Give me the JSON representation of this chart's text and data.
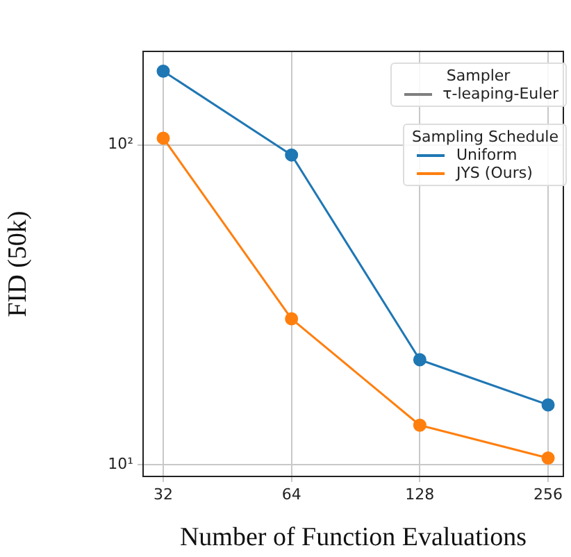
{
  "chart_data": {
    "type": "line",
    "xlabel": "Number of Function Evaluations",
    "ylabel": "FID (50k)",
    "x": [
      32,
      64,
      128,
      256
    ],
    "series": [
      {
        "name": "Uniform",
        "color": "#1f77b4",
        "values": [
          170,
          93,
          21.3,
          15.4
        ]
      },
      {
        "name": "JYS (Ours)",
        "color": "#ff7f0e",
        "values": [
          105,
          28.6,
          13.3,
          10.5
        ]
      },
      {
        "name": "τ-leaping-Euler",
        "color": "#7f7f7f",
        "values": [
          null,
          null,
          null,
          null
        ]
      }
    ],
    "legend_title": "Sampling Schedule",
    "annotations": [
      "Sampler"
    ],
    "log": "xy",
    "xlim": [
      28.7,
      278
    ],
    "xticks": [
      32,
      64,
      128,
      256
    ],
    "ylim": [
      9.2,
      196
    ],
    "yticks": [
      {
        "value": 10,
        "label": "10¹"
      },
      {
        "value": 100,
        "label": "10²"
      }
    ],
    "grid": true,
    "legend": "top right",
    "marker": "circle",
    "line_style": "solid"
  }
}
